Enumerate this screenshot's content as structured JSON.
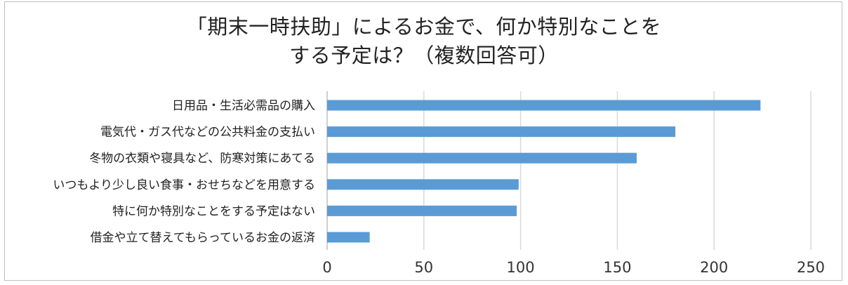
{
  "chart_data": {
    "type": "bar",
    "orientation": "horizontal",
    "title_lines": [
      "「期末一時扶助」によるお金で、何か特別なことを",
      "する予定は？（複数回答可）"
    ],
    "categories": [
      "日用品・生活必需品の購入",
      "電気代・ガス代などの公共料金の支払い",
      "冬物の衣類や寝具など、防寒対策にあてる",
      "いつもより少し良い食事・おせちなどを用意する",
      "特に何か特別なことをする予定はない",
      "借金や立て替えてもらっているお金の返済"
    ],
    "values": [
      224,
      180,
      160,
      99,
      98,
      22
    ],
    "xlim": [
      0,
      250
    ],
    "xticks": [
      0,
      50,
      100,
      150,
      200,
      250
    ],
    "grid": "vertical",
    "bar_color": "#5b9bd5",
    "grid_color": "#d9d9d9",
    "legend": "none"
  }
}
